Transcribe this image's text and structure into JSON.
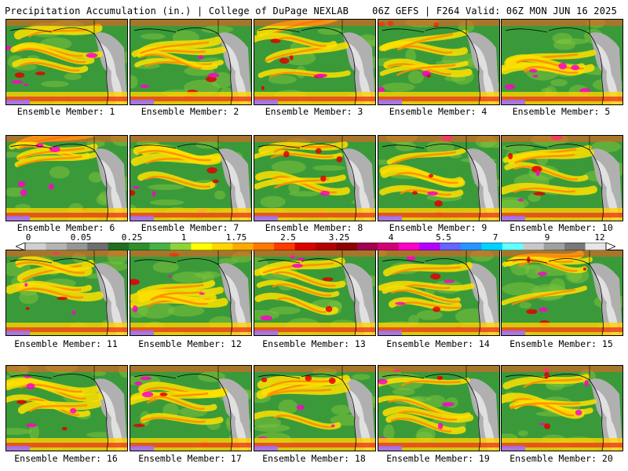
{
  "header": {
    "title": "Precipitation Accumulation (in.) | College of DuPage NEXLAB",
    "run_info": "06Z GEFS | F264 Valid: 06Z MON JUN 16 2025"
  },
  "legend": {
    "tick_labels": [
      "0",
      "0.05",
      "0.25",
      "1",
      "1.75",
      "2.5",
      "3.25",
      "4",
      "5.5",
      "7",
      "9",
      "12"
    ],
    "colors": [
      "#d0d0d0",
      "#b4b4b4",
      "#969696",
      "#6e6e6e",
      "#1f6f1f",
      "#2f8f2f",
      "#45b445",
      "#8fd23c",
      "#ffff00",
      "#ffd700",
      "#ffaa00",
      "#ff7800",
      "#ff3c00",
      "#dc0000",
      "#b40000",
      "#8c0000",
      "#a00050",
      "#d20078",
      "#ff00c8",
      "#b400ff",
      "#6464ff",
      "#2894ff",
      "#00d2ff",
      "#64ffff",
      "#c8c8c8",
      "#a0a0a0",
      "#787878",
      "#e6e6e6"
    ]
  },
  "panels": [
    {
      "caption": "Ensemble Member: 1"
    },
    {
      "caption": "Ensemble Member: 2"
    },
    {
      "caption": "Ensemble Member: 3"
    },
    {
      "caption": "Ensemble Member: 4"
    },
    {
      "caption": "Ensemble Member: 5"
    },
    {
      "caption": "Ensemble Member: 6"
    },
    {
      "caption": "Ensemble Member: 7"
    },
    {
      "caption": "Ensemble Member: 8"
    },
    {
      "caption": "Ensemble Member: 9"
    },
    {
      "caption": "Ensemble Member: 10"
    },
    {
      "caption": "Ensemble Member: 11"
    },
    {
      "caption": "Ensemble Member: 12"
    },
    {
      "caption": "Ensemble Member: 13"
    },
    {
      "caption": "Ensemble Member: 14"
    },
    {
      "caption": "Ensemble Member: 15"
    },
    {
      "caption": "Ensemble Member: 16"
    },
    {
      "caption": "Ensemble Member: 17"
    },
    {
      "caption": "Ensemble Member: 18"
    },
    {
      "caption": "Ensemble Member: 19"
    },
    {
      "caption": "Ensemble Member: 20"
    }
  ]
}
